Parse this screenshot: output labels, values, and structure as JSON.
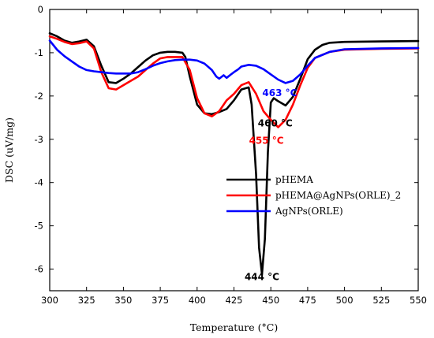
{
  "chart_data": {
    "type": "line",
    "xlabel": "Temperature (°C)",
    "ylabel": "DSC (uV/mg)",
    "xlim": [
      300,
      550
    ],
    "ylim": [
      -6.5,
      0
    ],
    "xticks": [
      "300",
      "325",
      "350",
      "375",
      "400",
      "425",
      "450",
      "475",
      "500",
      "525",
      "550"
    ],
    "yticks": [
      "0",
      "-1",
      "-2",
      "-3",
      "-4",
      "-5",
      "-6"
    ],
    "legend_position": "center-right",
    "series": [
      {
        "name": "pHEMA",
        "color": "#000000",
        "x": [
          300,
          305,
          310,
          315,
          320,
          325,
          330,
          335,
          340,
          345,
          350,
          355,
          360,
          365,
          370,
          375,
          380,
          385,
          390,
          392,
          395,
          400,
          405,
          410,
          415,
          420,
          425,
          430,
          435,
          437,
          440,
          442,
          444,
          446,
          448,
          450,
          452,
          455,
          460,
          465,
          470,
          475,
          480,
          485,
          490,
          500,
          525,
          550
        ],
        "y": [
          -0.55,
          -0.62,
          -0.72,
          -0.77,
          -0.74,
          -0.7,
          -0.85,
          -1.3,
          -1.68,
          -1.7,
          -1.6,
          -1.48,
          -1.33,
          -1.18,
          -1.06,
          -1.0,
          -0.98,
          -0.98,
          -1.0,
          -1.1,
          -1.55,
          -2.2,
          -2.4,
          -2.42,
          -2.37,
          -2.3,
          -2.1,
          -1.85,
          -1.8,
          -2.2,
          -3.8,
          -5.5,
          -6.12,
          -5.3,
          -3.3,
          -2.15,
          -2.05,
          -2.12,
          -2.22,
          -2.02,
          -1.6,
          -1.15,
          -0.93,
          -0.82,
          -0.77,
          -0.75,
          -0.74,
          -0.73
        ]
      },
      {
        "name": "pHEMA@AgNPs(ORLE)_2",
        "color": "#ff0000",
        "x": [
          300,
          305,
          310,
          315,
          320,
          325,
          330,
          335,
          340,
          345,
          350,
          355,
          360,
          365,
          370,
          375,
          380,
          385,
          390,
          395,
          400,
          405,
          410,
          415,
          420,
          425,
          430,
          435,
          440,
          445,
          450,
          455,
          460,
          465,
          470,
          475,
          480,
          490,
          500,
          525,
          550
        ],
        "y": [
          -0.62,
          -0.68,
          -0.75,
          -0.8,
          -0.78,
          -0.74,
          -0.9,
          -1.45,
          -1.82,
          -1.85,
          -1.75,
          -1.65,
          -1.55,
          -1.4,
          -1.25,
          -1.13,
          -1.1,
          -1.1,
          -1.1,
          -1.4,
          -2.05,
          -2.4,
          -2.47,
          -2.35,
          -2.1,
          -1.95,
          -1.75,
          -1.68,
          -1.95,
          -2.35,
          -2.55,
          -2.72,
          -2.55,
          -2.2,
          -1.75,
          -1.35,
          -1.12,
          -0.98,
          -0.93,
          -0.91,
          -0.9
        ]
      },
      {
        "name": "AgNPs(ORLE)",
        "color": "#0000ff",
        "x": [
          300,
          305,
          310,
          315,
          320,
          325,
          330,
          335,
          340,
          345,
          350,
          355,
          360,
          365,
          370,
          375,
          380,
          385,
          390,
          395,
          400,
          405,
          410,
          413,
          415,
          418,
          420,
          423,
          425,
          428,
          430,
          435,
          440,
          445,
          450,
          455,
          460,
          465,
          470,
          475,
          480,
          490,
          500,
          525,
          550
        ],
        "y": [
          -0.72,
          -0.93,
          -1.08,
          -1.2,
          -1.32,
          -1.4,
          -1.43,
          -1.45,
          -1.47,
          -1.48,
          -1.48,
          -1.48,
          -1.45,
          -1.38,
          -1.3,
          -1.24,
          -1.2,
          -1.17,
          -1.16,
          -1.16,
          -1.18,
          -1.25,
          -1.4,
          -1.55,
          -1.6,
          -1.52,
          -1.58,
          -1.5,
          -1.45,
          -1.38,
          -1.32,
          -1.28,
          -1.3,
          -1.38,
          -1.5,
          -1.62,
          -1.7,
          -1.65,
          -1.5,
          -1.3,
          -1.12,
          -0.98,
          -0.92,
          -0.9,
          -0.89
        ]
      }
    ],
    "annotations": [
      {
        "text": "444 °C",
        "color": "#000000",
        "x": 444,
        "y": -6.25
      },
      {
        "text": "460 °C",
        "color": "#000000",
        "x": 453,
        "y": -2.7
      },
      {
        "text": "455 °C",
        "color": "#ff0000",
        "x": 447,
        "y": -3.1
      },
      {
        "text": "463 °C",
        "color": "#0000ff",
        "x": 456,
        "y": -2.0
      }
    ]
  }
}
